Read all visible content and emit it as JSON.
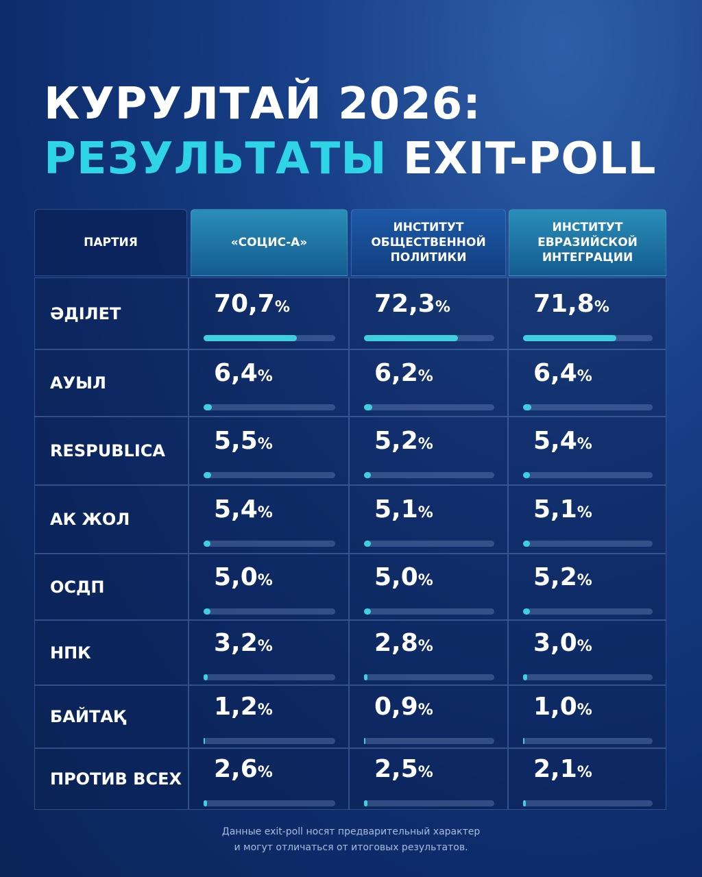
{
  "title": {
    "line1": "КУРУЛТАЙ 2026:",
    "line2_accent": "РЕЗУЛЬТАТЫ",
    "line2_rest": "EXIT-POLL"
  },
  "table": {
    "header": [
      "ПАРТИЯ",
      "«СОЦИС-А»",
      "ИНСТИТУТ ОБЩЕСТВЕННОЙ ПОЛИТИКИ",
      "ИНСТИТУТ ЕВРАЗИЙСКОЙ ИНТЕГРАЦИИ"
    ],
    "rows": [
      {
        "party": "ӘДІЛЕТ",
        "values": [
          70.7,
          72.3,
          71.8
        ],
        "value_labels": [
          "70,7%",
          "72,3%",
          "71,8%"
        ]
      },
      {
        "party": "АУЫЛ",
        "values": [
          6.4,
          6.2,
          6.4
        ],
        "value_labels": [
          "6,4%",
          "6,2%",
          "6,4%"
        ]
      },
      {
        "party": "RESPUBLICA",
        "values": [
          5.5,
          5.2,
          5.4
        ],
        "value_labels": [
          "5,5%",
          "5,2%",
          "5,4%"
        ]
      },
      {
        "party": "АК ЖОЛ",
        "values": [
          5.4,
          5.1,
          5.1
        ],
        "value_labels": [
          "5,4%",
          "5,1%",
          "5,1%"
        ]
      },
      {
        "party": "ОСДП",
        "values": [
          5.0,
          5.0,
          5.2
        ],
        "value_labels": [
          "5,0%",
          "5,0%",
          "5,2%"
        ]
      },
      {
        "party": "НПК",
        "values": [
          3.2,
          2.8,
          3.0
        ],
        "value_labels": [
          "3,2%",
          "2,8%",
          "3,0%"
        ]
      },
      {
        "party": "БАЙТАҚ",
        "values": [
          1.2,
          0.9,
          1.0
        ],
        "value_labels": [
          "1,2%",
          "0,9%",
          "1,0%"
        ]
      },
      {
        "party": "ПРОТИВ ВСЕХ",
        "values": [
          2.6,
          2.5,
          2.1
        ],
        "value_labels": [
          "2,6%",
          "2,5%",
          "2,1%"
        ]
      }
    ]
  },
  "footer": [
    "Данные exit-poll носят предварительный характер",
    "и могут отличаться от итоговых результатов."
  ]
}
